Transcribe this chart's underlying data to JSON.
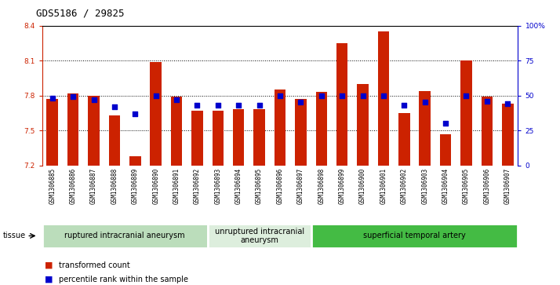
{
  "title": "GDS5186 / 29825",
  "samples": [
    "GSM1306885",
    "GSM1306886",
    "GSM1306887",
    "GSM1306888",
    "GSM1306889",
    "GSM1306890",
    "GSM1306891",
    "GSM1306892",
    "GSM1306893",
    "GSM1306894",
    "GSM1306895",
    "GSM1306896",
    "GSM1306897",
    "GSM1306898",
    "GSM1306899",
    "GSM1306900",
    "GSM1306901",
    "GSM1306902",
    "GSM1306903",
    "GSM1306904",
    "GSM1306905",
    "GSM1306906",
    "GSM1306907"
  ],
  "bar_values": [
    7.77,
    7.82,
    7.8,
    7.63,
    7.28,
    8.09,
    7.79,
    7.67,
    7.67,
    7.68,
    7.68,
    7.85,
    7.77,
    7.83,
    8.25,
    7.9,
    8.35,
    7.65,
    7.84,
    7.47,
    8.1,
    7.79,
    7.73
  ],
  "percentile_values": [
    48,
    49,
    47,
    42,
    37,
    50,
    47,
    43,
    43,
    43,
    43,
    50,
    45,
    50,
    50,
    50,
    50,
    43,
    45,
    30,
    50,
    46,
    44
  ],
  "ylim_left": [
    7.2,
    8.4
  ],
  "ylim_right": [
    0,
    100
  ],
  "yticks_left": [
    7.2,
    7.5,
    7.8,
    8.1,
    8.4
  ],
  "yticks_right": [
    0,
    25,
    50,
    75,
    100
  ],
  "ytick_labels_right": [
    "0",
    "25",
    "50",
    "75",
    "100%"
  ],
  "bar_color": "#cc2200",
  "dot_color": "#0000cc",
  "bar_bottom": 7.2,
  "groups": [
    {
      "label": "ruptured intracranial aneurysm",
      "start": 0,
      "end": 8,
      "color": "#bbddbb"
    },
    {
      "label": "unruptured intracranial\naneurysm",
      "start": 8,
      "end": 13,
      "color": "#ddeedd"
    },
    {
      "label": "superficial temporal artery",
      "start": 13,
      "end": 23,
      "color": "#44bb44"
    }
  ],
  "legend_items": [
    {
      "label": "transformed count",
      "color": "#cc2200"
    },
    {
      "label": "percentile rank within the sample",
      "color": "#0000cc"
    }
  ],
  "tissue_label": "tissue",
  "plot_bg_color": "#ffffff",
  "title_fontsize": 9,
  "tick_fontsize": 6.5,
  "xtick_fontsize": 5.5
}
